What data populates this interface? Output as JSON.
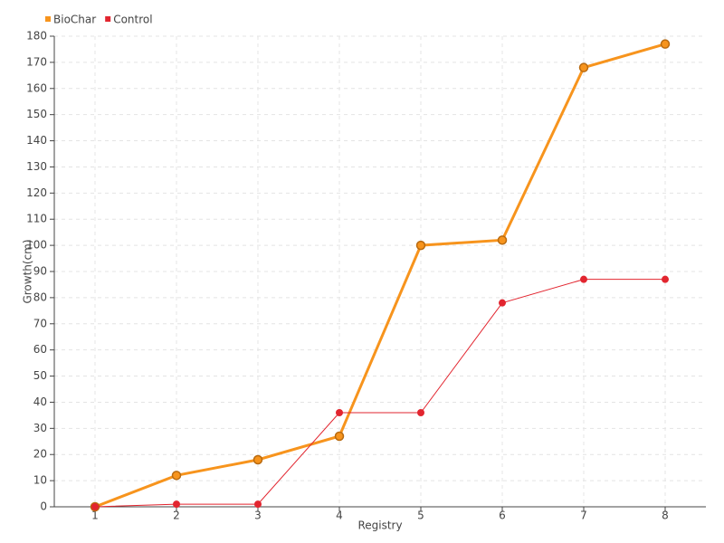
{
  "chart_data": {
    "type": "line",
    "x_label": "Registry",
    "y_label": "Growth(cm)",
    "x": [
      1,
      2,
      3,
      4,
      5,
      6,
      7,
      8
    ],
    "series": [
      {
        "name": "BioChar",
        "color": "#f7941d",
        "values": [
          0,
          12,
          18,
          27,
          100,
          102,
          168,
          177
        ]
      },
      {
        "name": "Control",
        "color": "#e2252f",
        "values": [
          0,
          1,
          1,
          36,
          36,
          78,
          87,
          87
        ]
      }
    ],
    "xlim": [
      0.5,
      8.5
    ],
    "xticks": [
      1,
      2,
      3,
      4,
      5,
      6,
      7,
      8
    ],
    "ylim": [
      0,
      180
    ],
    "yticks": [
      0,
      10,
      20,
      30,
      40,
      50,
      60,
      70,
      80,
      90,
      100,
      110,
      120,
      130,
      140,
      150,
      160,
      170,
      180
    ],
    "grid": true,
    "legend": "top-left"
  }
}
